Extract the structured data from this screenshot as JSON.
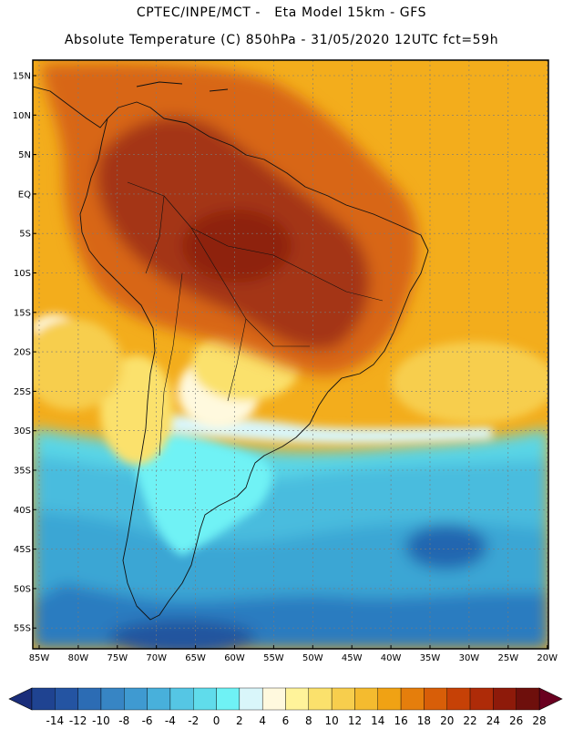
{
  "header": {
    "line1": "CPTEC/INPE/MCT -   Eta Model 15km - GFS",
    "line2": "Absolute Temperature (C) 850hPa - 31/05/2020 12UTC fct=59h"
  },
  "map": {
    "lat_ticks": [
      "15N",
      "10N",
      "5N",
      "EQ",
      "5S",
      "10S",
      "15S",
      "20S",
      "25S",
      "30S",
      "35S",
      "40S",
      "45S",
      "50S",
      "55S"
    ],
    "lon_ticks": [
      "85W",
      "80W",
      "75W",
      "70W",
      "65W",
      "60W",
      "55W",
      "50W",
      "45W",
      "40W",
      "35W",
      "30W",
      "25W",
      "20W"
    ],
    "regions": [
      {
        "name": "cold-south-atlantic",
        "color": "#3aa6d4"
      },
      {
        "name": "cold-deep-south",
        "color": "#2a7cc0"
      },
      {
        "name": "cyan-band",
        "color": "#5ad6e6"
      },
      {
        "name": "subtropical-warm",
        "color": "#f2b21a"
      },
      {
        "name": "tropical-hot",
        "color": "#d05614"
      },
      {
        "name": "amazon-core",
        "color": "#a43612"
      }
    ]
  },
  "colorbar": {
    "labels": [
      "-14",
      "-12",
      "-10",
      "-8",
      "-6",
      "-4",
      "-2",
      "0",
      "2",
      "4",
      "6",
      "8",
      "10",
      "12",
      "14",
      "16",
      "18",
      "20",
      "22",
      "24",
      "26",
      "28"
    ],
    "colors": [
      "#1f4391",
      "#2454a2",
      "#2c6cb4",
      "#3785c4",
      "#3f9ad1",
      "#48b0db",
      "#55c6e4",
      "#60dceb",
      "#6ff2f5",
      "#d9f6fa",
      "#fff9de",
      "#fff39a",
      "#fbe16c",
      "#f7ce4d",
      "#f4bb2f",
      "#f0a214",
      "#e57e0c",
      "#d85e08",
      "#c64106",
      "#ae2b08",
      "#8e1a0a",
      "#6e0f0c"
    ],
    "under_color": "#1a2d7a",
    "over_color": "#6a0020"
  }
}
